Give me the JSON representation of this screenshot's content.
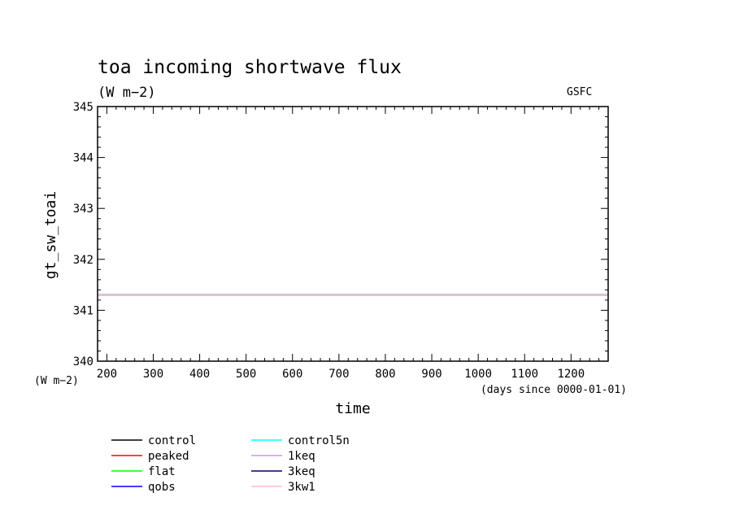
{
  "chart_data": {
    "type": "line",
    "title": "toa incoming shortwave flux",
    "subtitle": "(W m−2)",
    "credit": "GSFC",
    "xlabel": "time",
    "xunits": "(days since 0000-01-01)",
    "ylabel": "gt_sw_toai",
    "yunits": "(W m−2)",
    "xlim": [
      180,
      1280
    ],
    "ylim": [
      340,
      345
    ],
    "xticks": [
      200,
      300,
      400,
      500,
      600,
      700,
      800,
      900,
      1000,
      1100,
      1200
    ],
    "yticks": [
      340,
      341,
      342,
      343,
      344,
      345
    ],
    "grid": false,
    "legend_placement": "bottom",
    "series": [
      {
        "name": "control",
        "color": "#000000",
        "x": [
          180,
          1280
        ],
        "y": [
          341.3,
          341.3
        ]
      },
      {
        "name": "peaked",
        "color": "#ff0000",
        "x": [
          180,
          1280
        ],
        "y": [
          341.3,
          341.3
        ]
      },
      {
        "name": "flat",
        "color": "#00ff00",
        "x": [
          180,
          1280
        ],
        "y": [
          341.3,
          341.3
        ]
      },
      {
        "name": "qobs",
        "color": "#0000ff",
        "x": [
          180,
          1280
        ],
        "y": [
          341.3,
          341.3
        ]
      },
      {
        "name": "control5n",
        "color": "#00ffff",
        "x": [
          180,
          1280
        ],
        "y": [
          341.3,
          341.3
        ]
      },
      {
        "name": "1keq",
        "color": "#cc99e6",
        "x": [
          180,
          1280
        ],
        "y": [
          341.3,
          341.3
        ]
      },
      {
        "name": "3keq",
        "color": "#000066",
        "x": [
          180,
          1280
        ],
        "y": [
          341.3,
          341.3
        ]
      },
      {
        "name": "3kw1",
        "color": "#ffbfcc",
        "x": [
          180,
          1280
        ],
        "y": [
          341.3,
          341.3
        ]
      }
    ]
  }
}
